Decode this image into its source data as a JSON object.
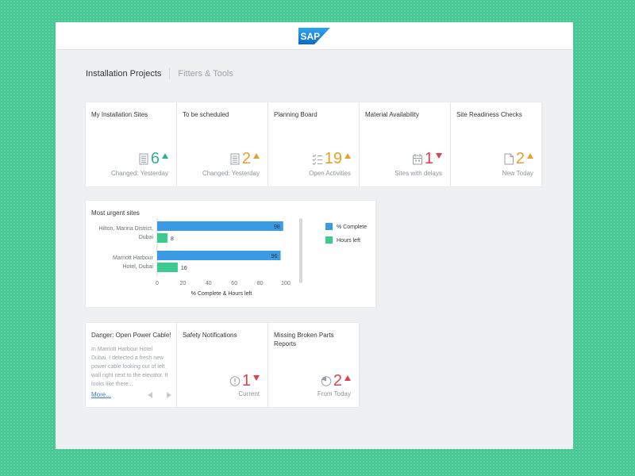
{
  "header": {
    "logo_text": "SAP",
    "brand_color": "#1a7fd0"
  },
  "tabs": [
    {
      "label": "Installation Projects",
      "active": true
    },
    {
      "label": "Fitters & Tools",
      "active": false
    }
  ],
  "kpi_tiles": [
    {
      "title": "My Installation Sites",
      "value": "6",
      "trend": "up",
      "color": "#2ab583",
      "subtitle": "Changed: Yesterday",
      "icon": "building-icon"
    },
    {
      "title": "To be scheduled",
      "value": "2",
      "trend": "up",
      "color": "#e5a12a",
      "subtitle": "Changed: Yesterday",
      "icon": "building-icon"
    },
    {
      "title": "Planning Board",
      "value": "19",
      "trend": "up",
      "color": "#e5a12a",
      "subtitle": "Open Activities",
      "icon": "checklist-icon"
    },
    {
      "title": "Material Availability",
      "value": "1",
      "trend": "down",
      "color": "#d9444c",
      "subtitle": "Sites with delays",
      "icon": "calendar-icon"
    },
    {
      "title": "Site Readiness Checks",
      "value": "2",
      "trend": "up",
      "color": "#e5a12a",
      "subtitle": "New Today",
      "icon": "document-icon"
    }
  ],
  "chart_tile": {
    "title": "Most urgent sites"
  },
  "chart_data": {
    "type": "bar",
    "orientation": "horizontal",
    "categories": [
      [
        "Hilton, Marina District,",
        "Dubai"
      ],
      [
        "Marriott Harbour",
        "Hotel, Dubai"
      ]
    ],
    "series": [
      {
        "name": "% Complete",
        "values": [
          98,
          96
        ],
        "color": "#3a9be5"
      },
      {
        "name": "Hours left",
        "values": [
          8,
          16
        ],
        "color": "#3ccb8f"
      }
    ],
    "xlabel": "% Complete & Hours left",
    "xlim": [
      0,
      100
    ],
    "xticks": [
      "0",
      "20",
      "40",
      "60",
      "80",
      "100"
    ],
    "legend": "right"
  },
  "news_tile": {
    "title": "Danger: Open Power Cable!",
    "body_lines": [
      "In Marriott Harbour Hotel",
      "Dubai, I detected a fresh new",
      "power cable looking out of left",
      "wall right next to the elevator. It",
      "looks like there..."
    ],
    "more_label": "More..."
  },
  "bottom_tiles": [
    {
      "title": "Safety Notifications",
      "value": "1",
      "trend": "down",
      "color": "#d9444c",
      "subtitle": "Current",
      "icon": "warning-icon"
    },
    {
      "title_lines": [
        "Missing Broken Parts",
        "Reports"
      ],
      "value": "2",
      "trend": "up",
      "color": "#d9444c",
      "subtitle": "From Today",
      "icon": "pie-clock-icon"
    }
  ]
}
